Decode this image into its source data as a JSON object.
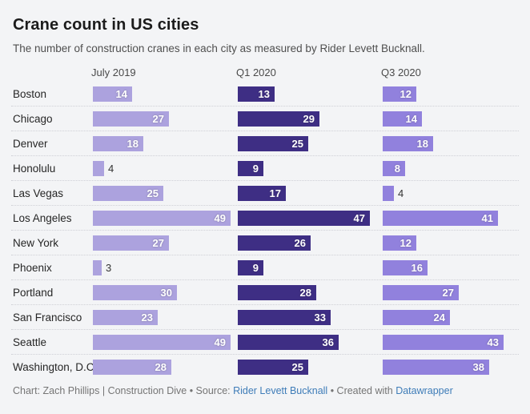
{
  "chart_data": {
    "type": "bar",
    "layout": "small-multiples, 3 columns of horizontal bars, dotted row separators, value labels at bar end",
    "title": "Crane count in US cities",
    "subtitle": "The number of construction cranes in each city as measured by Rider Levett Bucknall.",
    "columns": [
      "July 2019",
      "Q1 2020",
      "Q3 2020"
    ],
    "categories": [
      "Boston",
      "Chicago",
      "Denver",
      "Honolulu",
      "Las Vegas",
      "Los Angeles",
      "New York",
      "Phoenix",
      "Portland",
      "San Francisco",
      "Seattle",
      "Washington, D.C."
    ],
    "series": [
      {
        "name": "July 2019",
        "color": "#aca2de",
        "values": [
          14,
          27,
          18,
          4,
          25,
          49,
          27,
          3,
          30,
          23,
          49,
          28
        ]
      },
      {
        "name": "Q1 2020",
        "color": "#3e2e84",
        "values": [
          13,
          29,
          25,
          9,
          17,
          47,
          26,
          9,
          28,
          33,
          36,
          25
        ]
      },
      {
        "name": "Q3 2020",
        "color": "#9181dd",
        "values": [
          12,
          14,
          18,
          8,
          4,
          41,
          12,
          16,
          27,
          24,
          43,
          38
        ]
      }
    ],
    "xmax": 49,
    "value_label_style": "white bold inside bar end; dark gray outside bar for very small values",
    "grid": "horizontal dotted separators between rows, no axes"
  },
  "footer": {
    "prefix": "Chart: Zach Phillips | Construction Dive • Source: ",
    "source_link": "Rider Levett Bucknall",
    "middle": " • Created with ",
    "credit_link": "Datawrapper"
  },
  "colors": {
    "background": "#f3f4f6",
    "title_text": "#1b1b1b",
    "subtitle_text": "#4f4f4f",
    "column_header_text": "#4a4a4a",
    "city_label_text": "#262626",
    "separator": "#cfd0d6",
    "bar_label_inside": "#ffffff",
    "bar_label_outside": "#333333",
    "link": "#3e7cb8",
    "footer_text": "#757575"
  }
}
